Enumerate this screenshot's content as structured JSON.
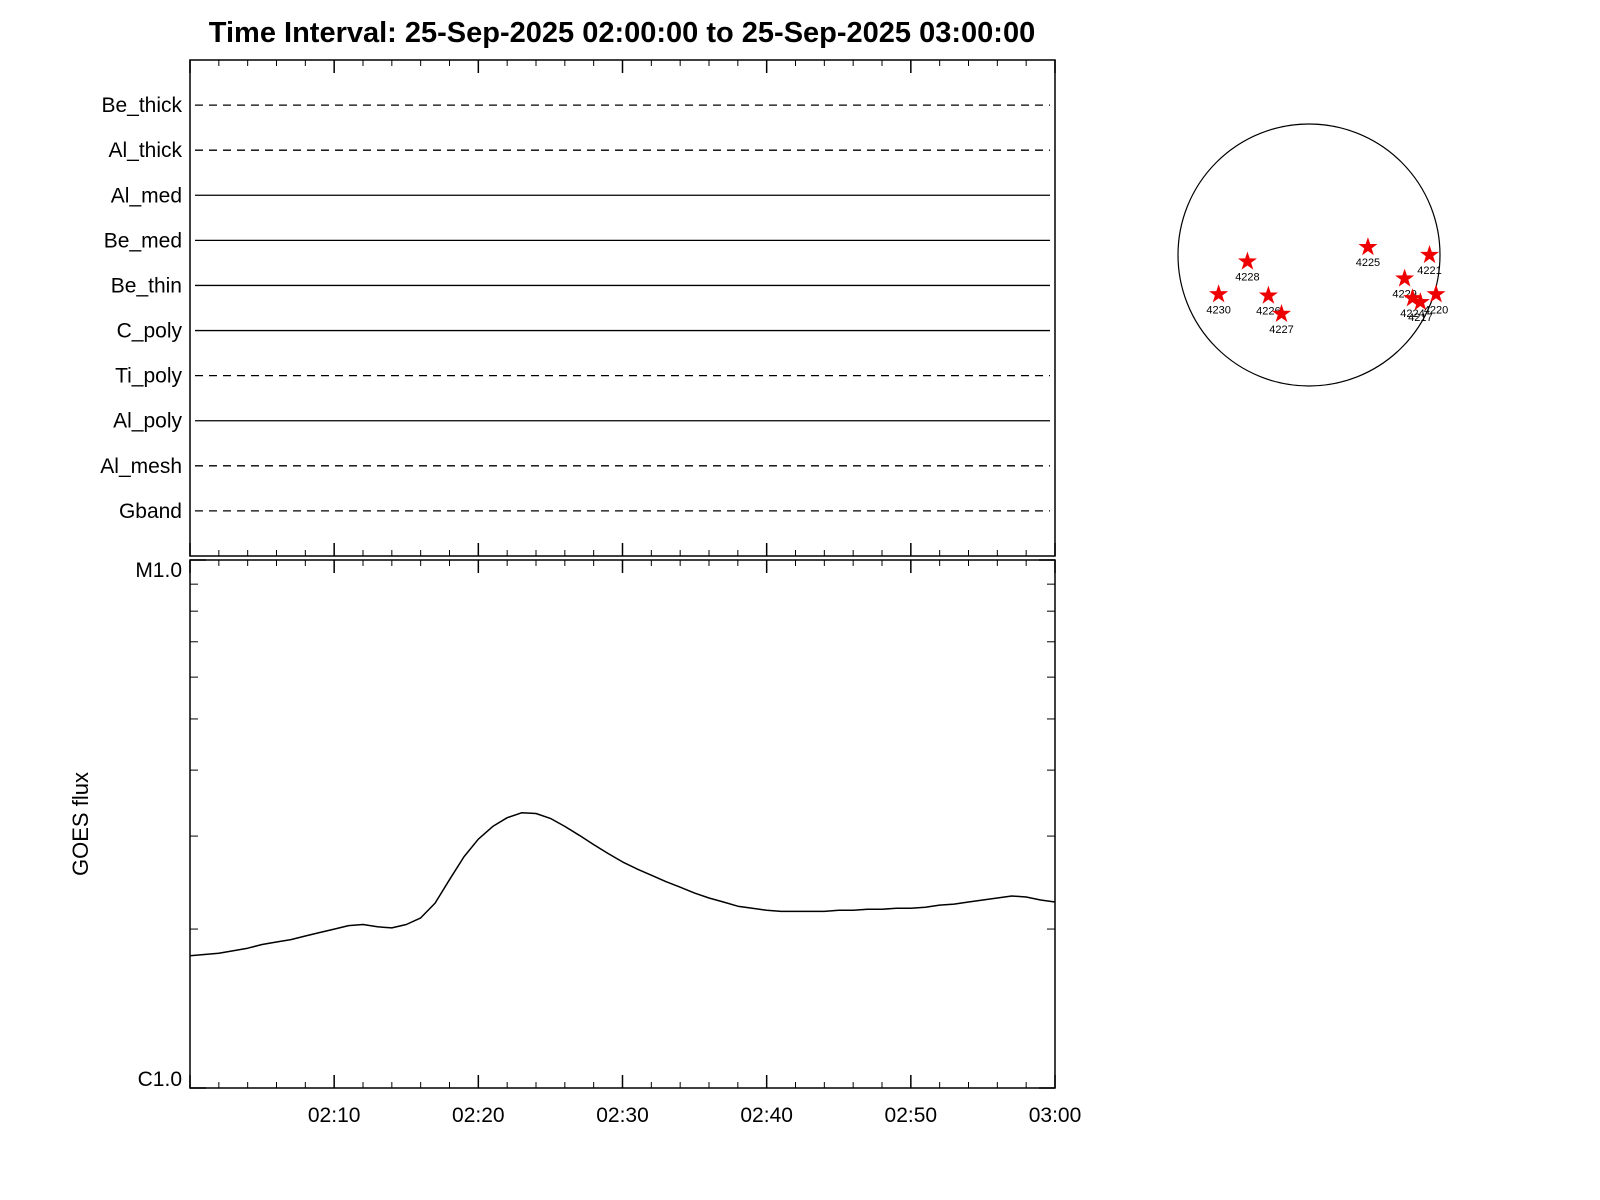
{
  "title": "Time Interval: 25-Sep-2025 02:00:00 to 25-Sep-2025 03:00:00",
  "colors": {
    "axis": "#000000",
    "curve": "#000000",
    "star": "#ee0000",
    "background": "#ffffff"
  },
  "chart_data": [
    {
      "type": "table",
      "panel": "xrt-filter-timeline",
      "x_range": [
        "02:00",
        "03:00"
      ],
      "x_range_minutes": [
        0,
        60
      ],
      "rows": [
        {
          "label": "Be_thick",
          "line_style": "dashed"
        },
        {
          "label": "Al_thick",
          "line_style": "dashed"
        },
        {
          "label": "Al_med",
          "line_style": "solid"
        },
        {
          "label": "Be_med",
          "line_style": "solid"
        },
        {
          "label": "Be_thin",
          "line_style": "solid"
        },
        {
          "label": "C_poly",
          "line_style": "solid"
        },
        {
          "label": "Ti_poly",
          "line_style": "dashed"
        },
        {
          "label": "Al_poly",
          "line_style": "solid"
        },
        {
          "label": "Al_mesh",
          "line_style": "dashed"
        },
        {
          "label": "Gband",
          "line_style": "dashed"
        }
      ]
    },
    {
      "type": "line",
      "panel": "goes-flux",
      "ylabel": "GOES flux",
      "yscale": "log",
      "y_top_label": "M1.0",
      "y_bottom_label": "C1.0",
      "x_range_minutes": [
        0,
        60
      ],
      "x_tick_labels": [
        "02:10",
        "02:20",
        "02:30",
        "02:40",
        "02:50",
        "03:00"
      ],
      "x_tick_minutes": [
        10,
        20,
        30,
        40,
        50,
        60
      ],
      "x_minor_tick_every_minutes": 2,
      "grid": false,
      "series": [
        {
          "name": "goes-xrs-flux",
          "x_minutes": [
            0,
            1,
            2,
            3,
            4,
            5,
            6,
            7,
            8,
            9,
            10,
            11,
            12,
            13,
            14,
            15,
            16,
            17,
            18,
            19,
            20,
            21,
            22,
            23,
            24,
            25,
            26,
            27,
            28,
            29,
            30,
            31,
            32,
            33,
            34,
            35,
            36,
            37,
            38,
            39,
            40,
            41,
            42,
            43,
            44,
            45,
            46,
            47,
            48,
            49,
            50,
            51,
            52,
            53,
            54,
            55,
            56,
            57,
            58,
            59,
            60
          ],
          "flux_c": [
            1.78,
            1.79,
            1.8,
            1.82,
            1.84,
            1.87,
            1.89,
            1.91,
            1.94,
            1.97,
            2.0,
            2.03,
            2.04,
            2.02,
            2.01,
            2.04,
            2.1,
            2.24,
            2.48,
            2.74,
            2.96,
            3.13,
            3.25,
            3.32,
            3.31,
            3.24,
            3.13,
            3.01,
            2.89,
            2.78,
            2.68,
            2.6,
            2.53,
            2.46,
            2.4,
            2.34,
            2.29,
            2.25,
            2.21,
            2.19,
            2.17,
            2.16,
            2.16,
            2.16,
            2.16,
            2.17,
            2.17,
            2.18,
            2.18,
            2.19,
            2.19,
            2.2,
            2.22,
            2.23,
            2.25,
            2.27,
            2.29,
            2.31,
            2.3,
            2.27,
            2.25
          ]
        }
      ]
    },
    {
      "type": "scatter",
      "panel": "solar-disk",
      "marker": "star",
      "marker_color": "#ee0000",
      "regions": [
        {
          "label": "4228",
          "x": -0.47,
          "y": 0.05
        },
        {
          "label": "4225",
          "x": 0.45,
          "y": -0.06
        },
        {
          "label": "4221",
          "x": 0.92,
          "y": 0.0
        },
        {
          "label": "4230",
          "x": -0.69,
          "y": 0.3
        },
        {
          "label": "4226",
          "x": -0.31,
          "y": 0.31
        },
        {
          "label": "4227",
          "x": -0.21,
          "y": 0.45
        },
        {
          "label": "4229",
          "x": 0.73,
          "y": 0.18
        },
        {
          "label": "4224",
          "x": 0.79,
          "y": 0.33
        },
        {
          "label": "4217",
          "x": 0.85,
          "y": 0.36
        },
        {
          "label": "4220",
          "x": 0.97,
          "y": 0.3
        }
      ]
    }
  ]
}
